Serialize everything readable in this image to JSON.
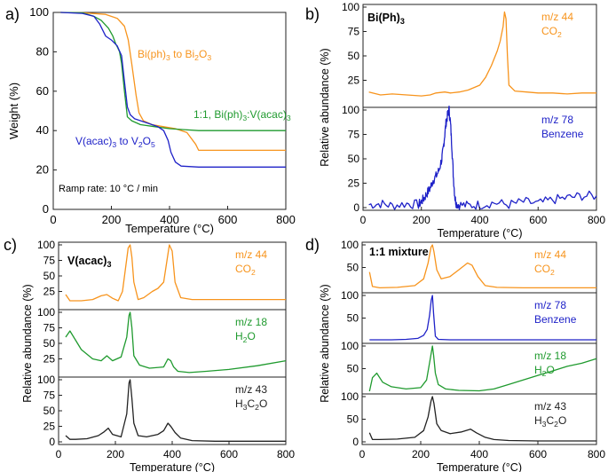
{
  "colors": {
    "orange": "#f7941d",
    "green": "#1f9a2e",
    "blue": "#1f22c8",
    "black": "#222222"
  },
  "chart_data": [
    {
      "id": "a",
      "panel_label": "a)",
      "type": "line",
      "xlabel": "Temperature (°C)",
      "ylabel": "Weight (%)",
      "xlim": [
        0,
        800
      ],
      "ylim": [
        0,
        100
      ],
      "xticks": [
        "0",
        "200",
        "400",
        "600",
        "800"
      ],
      "yticks": [
        "0",
        "20",
        "40",
        "60",
        "80",
        "100"
      ],
      "annotations": {
        "ramp": "Ramp rate: 10 °C / min"
      },
      "series": [
        {
          "name": "Bi(ph)3 to Bi2O3",
          "label_parts": [
            "Bi(ph)",
            "3",
            " to Bi",
            "2",
            "O",
            "3"
          ],
          "color": "orange",
          "x": [
            25,
            100,
            180,
            220,
            245,
            258,
            270,
            285,
            295,
            310,
            340,
            380,
            420,
            460,
            490,
            500,
            550,
            650,
            800
          ],
          "y": [
            100,
            99.8,
            99,
            97,
            93,
            86,
            74,
            58,
            49,
            45,
            43,
            42,
            41,
            39,
            33,
            30,
            30,
            30,
            30
          ]
        },
        {
          "name": "1:1, Bi(ph)3:V(acac)3",
          "label_parts": [
            "1:1, Bi(ph)",
            "3",
            ":V(acac)",
            "3"
          ],
          "color": "green",
          "x": [
            25,
            100,
            140,
            165,
            190,
            205,
            215,
            222,
            228,
            235,
            245,
            255,
            270,
            300,
            350,
            400,
            450,
            500,
            600,
            800
          ],
          "y": [
            100,
            99.8,
            98,
            96,
            92,
            88,
            84,
            82,
            80,
            74,
            60,
            47,
            45,
            43,
            42,
            41,
            40.5,
            40,
            40,
            40
          ],
          "label_color": "green"
        },
        {
          "name": "V(acac)3 to V2O5",
          "label_parts": [
            "V(acac)",
            "3",
            " to V",
            "2",
            "O",
            "5"
          ],
          "color": "blue",
          "x": [
            25,
            100,
            140,
            160,
            180,
            200,
            220,
            235,
            245,
            255,
            265,
            280,
            320,
            360,
            380,
            395,
            405,
            420,
            440,
            500,
            800
          ],
          "y": [
            100,
            99.5,
            98,
            94,
            88,
            86,
            83,
            78,
            65,
            52,
            48,
            46,
            44,
            42,
            40,
            35,
            29,
            24,
            22,
            21.5,
            21.5
          ]
        }
      ]
    },
    {
      "id": "b",
      "panel_label": "b)",
      "type": "line",
      "title": "Bi(Ph)",
      "title_sub": "3",
      "xlabel": "Temperature (°C)",
      "ylabel": "Relative abundance (%)",
      "xlim": [
        0,
        800
      ],
      "xticks": [
        "0",
        "200",
        "400",
        "600",
        "800"
      ],
      "stacks": [
        {
          "mz": "m/z 44",
          "species_parts": [
            "CO",
            "2"
          ],
          "color": "orange",
          "yticks": [
            "25",
            "50",
            "75",
            "100"
          ],
          "x": [
            20,
            60,
            100,
            150,
            200,
            230,
            250,
            280,
            300,
            330,
            360,
            400,
            420,
            440,
            460,
            470,
            480,
            485,
            490,
            495,
            500,
            520,
            560,
            600,
            650,
            700,
            750,
            800
          ],
          "y": [
            13,
            10,
            11,
            10,
            9,
            10,
            12,
            13,
            12,
            13,
            15,
            20,
            28,
            40,
            55,
            65,
            80,
            95,
            88,
            50,
            20,
            14,
            13,
            12,
            12,
            11,
            12,
            12
          ]
        },
        {
          "mz": "m/z 78",
          "species_parts": [
            "Benzene"
          ],
          "color": "blue",
          "yticks": [
            "0",
            "25",
            "50",
            "75",
            "100"
          ],
          "x": [
            20,
            60,
            100,
            150,
            190,
            200,
            210,
            220,
            230,
            240,
            250,
            260,
            270,
            275,
            280,
            285,
            290,
            295,
            300,
            305,
            310,
            315,
            320,
            330,
            360,
            400,
            450,
            500,
            550,
            600,
            650,
            700,
            750,
            800
          ],
          "y": [
            3,
            4,
            2,
            4,
            3,
            6,
            10,
            15,
            20,
            28,
            32,
            38,
            50,
            60,
            75,
            88,
            95,
            100,
            85,
            60,
            30,
            10,
            4,
            3,
            2,
            3,
            5,
            3,
            6,
            4,
            8,
            10,
            12,
            12
          ]
        }
      ]
    },
    {
      "id": "c",
      "panel_label": "c)",
      "type": "line",
      "title": "V(acac)",
      "title_sub": "3",
      "xlabel": "Temperature (°C)",
      "ylabel": "Relative abundance (%)",
      "xlim": [
        0,
        800
      ],
      "xticks": [
        "0",
        "200",
        "400",
        "600",
        "800"
      ],
      "stacks": [
        {
          "mz": "m/z 44",
          "species_parts": [
            "CO",
            "2"
          ],
          "color": "orange",
          "yticks": [
            "25",
            "50",
            "75",
            "100"
          ],
          "x": [
            25,
            40,
            80,
            120,
            150,
            170,
            190,
            210,
            225,
            235,
            245,
            252,
            258,
            265,
            280,
            300,
            330,
            350,
            370,
            380,
            390,
            400,
            410,
            430,
            470,
            550,
            650,
            800
          ],
          "y": [
            20,
            10,
            10,
            12,
            18,
            20,
            14,
            10,
            25,
            60,
            95,
            100,
            80,
            40,
            12,
            15,
            25,
            30,
            40,
            70,
            100,
            90,
            40,
            15,
            12,
            12,
            12,
            12
          ]
        },
        {
          "mz": "m/z 18",
          "species_parts": [
            "H",
            "2",
            "O"
          ],
          "color": "green",
          "yticks": [
            "25",
            "50",
            "75",
            "100"
          ],
          "x": [
            25,
            40,
            60,
            80,
            120,
            150,
            170,
            190,
            220,
            240,
            248,
            252,
            258,
            265,
            285,
            320,
            370,
            385,
            395,
            405,
            420,
            460,
            520,
            600,
            700,
            800
          ],
          "y": [
            60,
            70,
            55,
            40,
            25,
            22,
            30,
            22,
            28,
            60,
            95,
            100,
            75,
            30,
            15,
            10,
            12,
            25,
            22,
            12,
            5,
            3,
            5,
            8,
            14,
            22
          ]
        },
        {
          "mz": "m/z 43",
          "species_parts": [
            "H",
            "3",
            "C",
            "2",
            "O"
          ],
          "color": "black",
          "yticks": [
            "0",
            "25",
            "50",
            "75",
            "100"
          ],
          "x": [
            25,
            40,
            60,
            100,
            140,
            160,
            175,
            190,
            220,
            240,
            248,
            252,
            258,
            265,
            280,
            310,
            350,
            370,
            385,
            395,
            410,
            430,
            470,
            550,
            650,
            800
          ],
          "y": [
            10,
            4,
            4,
            5,
            10,
            16,
            22,
            12,
            8,
            45,
            95,
            100,
            70,
            30,
            10,
            8,
            12,
            18,
            30,
            25,
            15,
            6,
            2,
            1,
            1,
            1
          ]
        }
      ]
    },
    {
      "id": "d",
      "panel_label": "d)",
      "type": "line",
      "title": "1:1 mixture",
      "xlabel": "Temperature (°C)",
      "ylabel": "Relative abundance (%)",
      "xlim": [
        0,
        800
      ],
      "xticks": [
        "0",
        "200",
        "400",
        "600",
        "800"
      ],
      "stacks": [
        {
          "mz": "m/z 44",
          "species_parts": [
            "CO",
            "2"
          ],
          "color": "orange",
          "yticks": [
            "50",
            "100"
          ],
          "x": [
            25,
            35,
            60,
            120,
            180,
            210,
            225,
            235,
            240,
            245,
            255,
            270,
            300,
            330,
            360,
            375,
            395,
            420,
            460,
            550,
            650,
            800
          ],
          "y": [
            40,
            8,
            5,
            6,
            10,
            25,
            60,
            95,
            100,
            85,
            45,
            25,
            30,
            45,
            60,
            55,
            30,
            10,
            6,
            5,
            5,
            5
          ]
        },
        {
          "mz": "m/z 78",
          "species_parts": [
            "Benzene"
          ],
          "color": "blue",
          "yticks": [
            "50",
            "100"
          ],
          "x": [
            25,
            100,
            150,
            190,
            210,
            222,
            230,
            236,
            240,
            244,
            250,
            260,
            300,
            400,
            500,
            650,
            800
          ],
          "y": [
            2,
            2,
            3,
            5,
            12,
            25,
            55,
            90,
            100,
            60,
            10,
            3,
            2,
            2,
            2,
            2,
            2
          ]
        },
        {
          "mz": "m/z 18",
          "species_parts": [
            "H",
            "2",
            "O"
          ],
          "color": "green",
          "yticks": [
            "50",
            "100"
          ],
          "x": [
            25,
            35,
            50,
            70,
            100,
            150,
            200,
            220,
            232,
            240,
            244,
            250,
            260,
            285,
            330,
            400,
            450,
            500,
            550,
            600,
            650,
            700,
            750,
            800
          ],
          "y": [
            0,
            30,
            40,
            20,
            10,
            5,
            8,
            25,
            70,
            100,
            80,
            40,
            15,
            5,
            2,
            1,
            5,
            15,
            25,
            35,
            45,
            55,
            62,
            72
          ]
        },
        {
          "mz": "m/z 43",
          "species_parts": [
            "H",
            "3",
            "C",
            "2",
            "O"
          ],
          "color": "black",
          "yticks": [
            "0",
            "50",
            "100"
          ],
          "x": [
            25,
            35,
            60,
            120,
            180,
            210,
            225,
            235,
            240,
            245,
            255,
            270,
            300,
            340,
            370,
            390,
            420,
            450,
            500,
            600,
            800
          ],
          "y": [
            20,
            5,
            5,
            6,
            10,
            25,
            55,
            90,
            100,
            85,
            40,
            25,
            18,
            22,
            28,
            20,
            10,
            5,
            3,
            2,
            2
          ]
        }
      ]
    }
  ]
}
